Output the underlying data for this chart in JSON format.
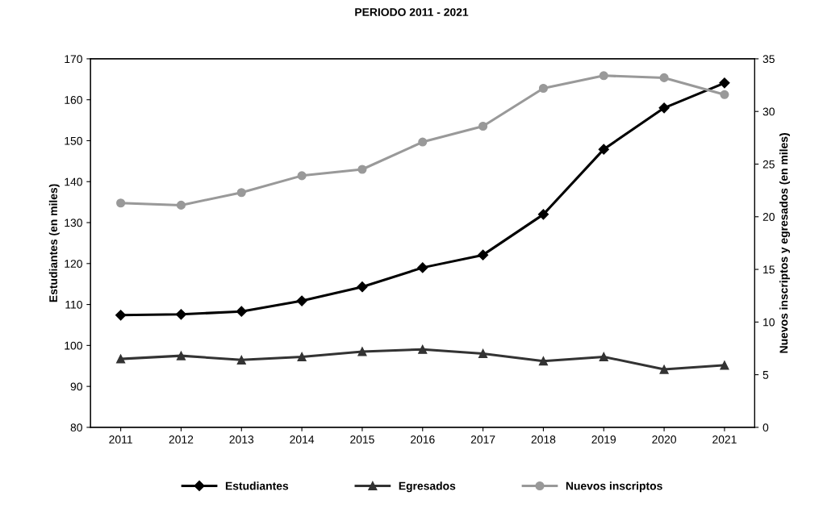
{
  "chart_data": {
    "type": "line",
    "title": "PERIODO 2011 - 2021",
    "categories": [
      "2011",
      "2012",
      "2013",
      "2014",
      "2015",
      "2016",
      "2017",
      "2018",
      "2019",
      "2020",
      "2021"
    ],
    "ylabel": "Estudiantes (en miles)",
    "y2label": "Nuevos inscriptos y egresados (en miles)",
    "ylim": [
      80,
      170
    ],
    "yticks": [
      80,
      90,
      100,
      110,
      120,
      130,
      140,
      150,
      160,
      170
    ],
    "y2lim": [
      0,
      35
    ],
    "y2ticks": [
      0,
      5,
      10,
      15,
      20,
      25,
      30,
      35
    ],
    "grid": false,
    "legend": "bottom",
    "series": [
      {
        "name": "Estudiantes",
        "color": "#000000",
        "marker": "diamond",
        "values": [
          107.4,
          107.6,
          108.3,
          110.9,
          114.3,
          119.0,
          122.1,
          132.0,
          147.9,
          158.0,
          164.1
        ]
      },
      {
        "name": "Egresados",
        "color": "#333333",
        "marker": "triangle",
        "axis": "y2",
        "values": [
          6.5,
          6.8,
          6.4,
          6.7,
          7.2,
          7.4,
          7.0,
          6.3,
          6.7,
          5.5,
          5.9
        ]
      },
      {
        "name": "Nuevos inscriptos",
        "color": "#999999",
        "marker": "circle",
        "axis": "y2",
        "values": [
          21.3,
          21.1,
          22.3,
          23.9,
          24.5,
          27.1,
          28.6,
          32.2,
          33.4,
          33.2,
          31.6
        ]
      }
    ]
  }
}
